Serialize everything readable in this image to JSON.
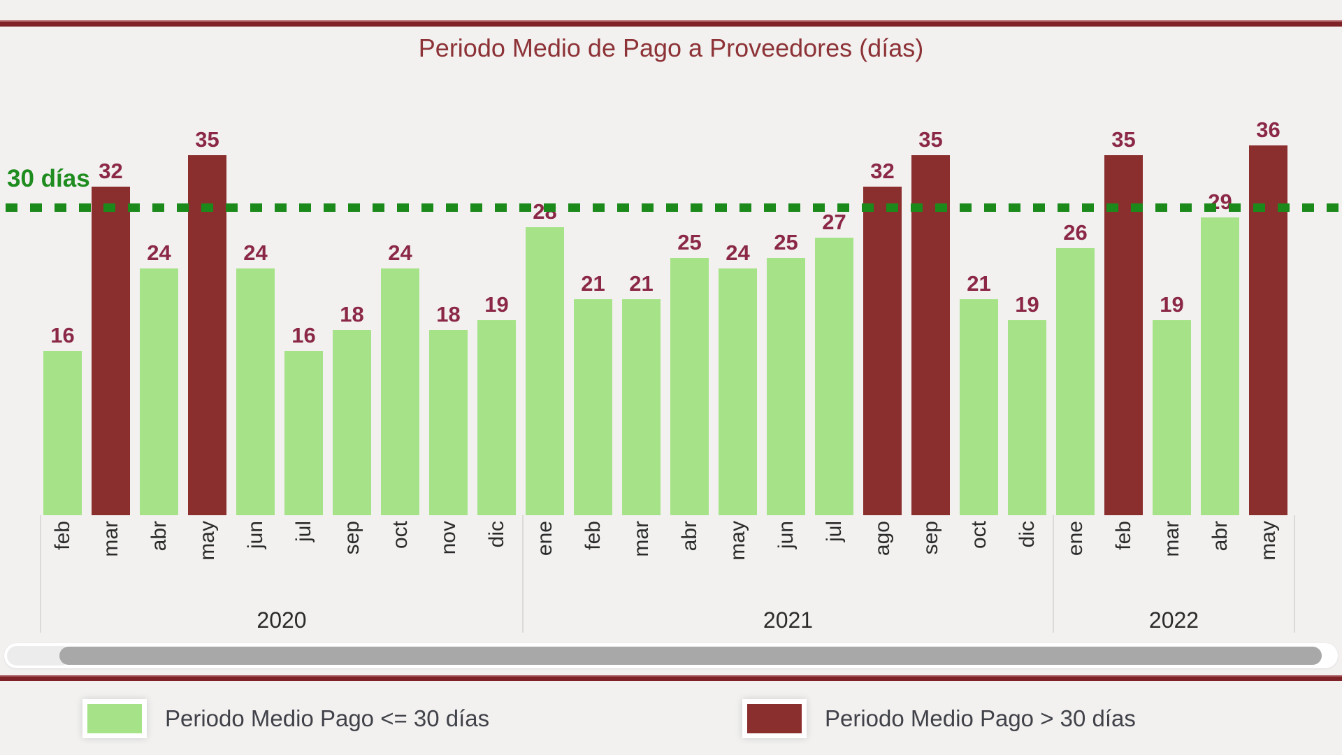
{
  "title": "Periodo Medio de Pago a Proveedores (días)",
  "threshold": {
    "label": "30 días",
    "value": 30
  },
  "colors": {
    "background": "#f2f1f0",
    "frame_line": "#7e2227",
    "title_text": "#8d3236",
    "bar_ok": "#a6e388",
    "bar_over": "#8b2e2e",
    "value_label": "#8b2846",
    "threshold_line": "#1b8a1b",
    "axis_text": "#2b2b2b",
    "legend_text": "#414249"
  },
  "chart_data": {
    "type": "bar",
    "title": "Periodo Medio de Pago a Proveedores (días)",
    "ylabel": "días",
    "ylim": [
      0,
      40
    ],
    "grid": false,
    "threshold_line": {
      "value": 30,
      "label": "30 días",
      "style": "dashed",
      "color": "#1b8a1b"
    },
    "color_rule": "bar is dark red when value > 30, light green when value <= 30",
    "legend": [
      "Periodo Medio Pago <= 30 días",
      "Periodo Medio Pago > 30 días"
    ],
    "legend_position": "bottom",
    "groups": [
      {
        "year": "2020",
        "categories": [
          "feb",
          "mar",
          "abr",
          "may",
          "jun",
          "jul",
          "sep",
          "oct",
          "nov",
          "dic"
        ],
        "values": [
          16,
          32,
          24,
          35,
          24,
          16,
          18,
          24,
          18,
          19
        ]
      },
      {
        "year": "2021",
        "categories": [
          "ene",
          "feb",
          "mar",
          "abr",
          "may",
          "jun",
          "jul",
          "ago",
          "sep",
          "oct",
          "dic"
        ],
        "values": [
          28,
          21,
          21,
          25,
          24,
          25,
          27,
          32,
          35,
          21,
          19
        ]
      },
      {
        "year": "2022",
        "categories": [
          "ene",
          "feb",
          "mar",
          "abr",
          "may"
        ],
        "values": [
          26,
          35,
          19,
          29,
          36
        ]
      }
    ]
  }
}
